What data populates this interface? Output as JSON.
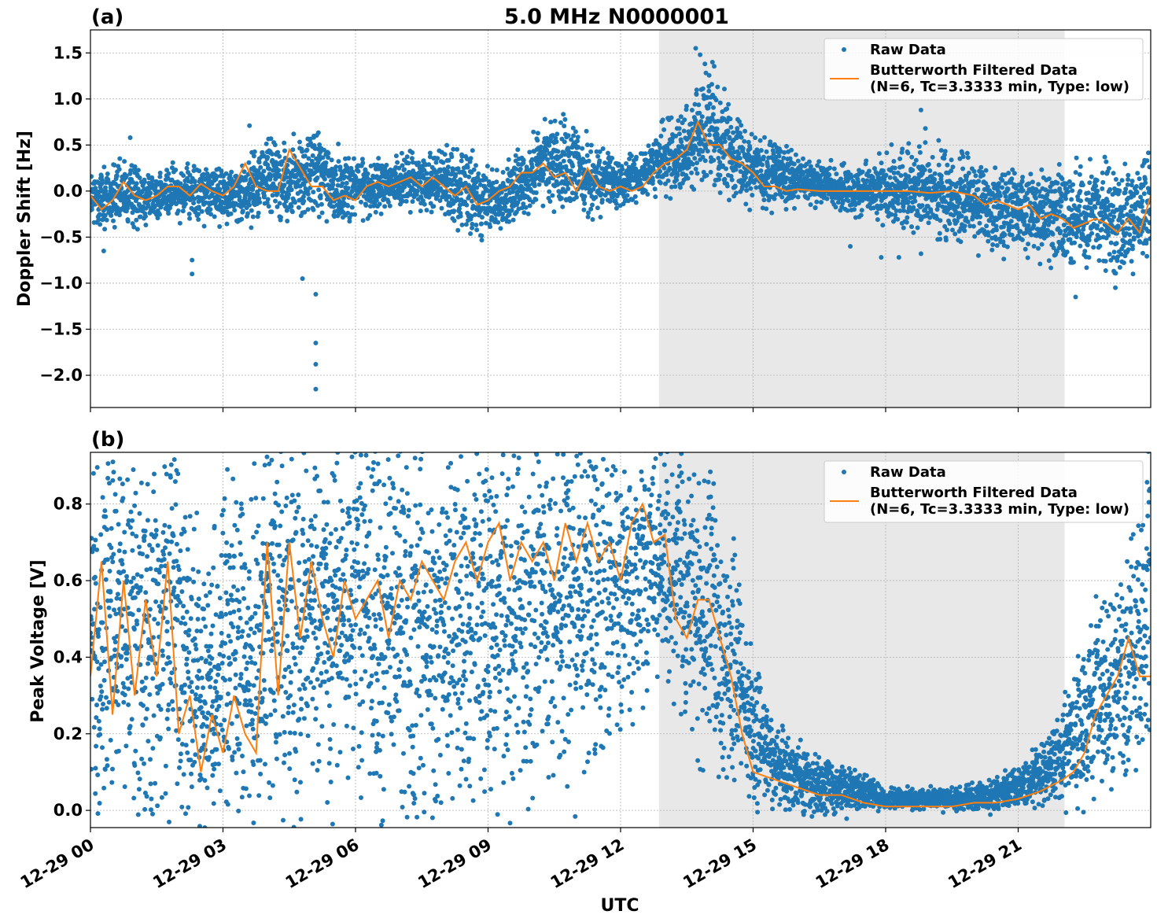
{
  "figure": {
    "title": "5.0 MHz N0000001",
    "xlabel": "UTC",
    "x_ticks": [
      "12-29 00",
      "12-29 03",
      "12-29 06",
      "12-29 09",
      "12-29 12",
      "12-29 15",
      "12-29 18",
      "12-29 21"
    ],
    "x_range_hours": [
      0,
      24
    ],
    "shaded_range_hours": [
      12.87,
      22.05
    ]
  },
  "colors": {
    "raw": "#1f77b4",
    "filtered": "#ff7f0e",
    "shade": "#e8e8e8",
    "grid": "#b0b0b0"
  },
  "legend": {
    "raw_label": "Raw Data",
    "filtered_label_line1": "Butterworth Filtered Data",
    "filtered_label_line2": "(N=6, Tc=3.3333 min, Type: low)"
  },
  "chart_data": [
    {
      "type": "scatter",
      "panel_label": "(a)",
      "ylabel": "Doppler Shift [Hz]",
      "ylim": [
        -2.35,
        1.75
      ],
      "y_ticks": [
        "−2.0",
        "−1.5",
        "−1.0",
        "−0.5",
        "0.0",
        "0.5",
        "1.0",
        "1.5"
      ],
      "y_tick_values": [
        -2.0,
        -1.5,
        -1.0,
        -0.5,
        0.0,
        0.5,
        1.0,
        1.5
      ],
      "grid": true,
      "legend_position": "top-right",
      "series": [
        {
          "name": "Raw Data",
          "kind": "band",
          "x": [
            0,
            0.5,
            1,
            1.5,
            2,
            2.5,
            3,
            3.5,
            4,
            4.5,
            5,
            5.5,
            6,
            6.5,
            7,
            7.5,
            8,
            8.5,
            9,
            9.5,
            10,
            10.5,
            11,
            11.5,
            12,
            12.5,
            13,
            13.5,
            14,
            14.5,
            15,
            15.5,
            16,
            16.5,
            17,
            17.5,
            18,
            18.5,
            19,
            19.5,
            20,
            20.5,
            21,
            21.5,
            22,
            22.5,
            23,
            23.5,
            24
          ],
          "upper": [
            0.15,
            0.2,
            0.2,
            0.15,
            0.2,
            0.2,
            0.2,
            0.2,
            0.55,
            0.3,
            0.6,
            0.35,
            0.3,
            0.25,
            0.3,
            0.3,
            0.4,
            0.3,
            0.1,
            0.2,
            0.5,
            0.7,
            0.6,
            0.35,
            0.3,
            0.35,
            0.65,
            0.8,
            1.2,
            0.8,
            0.55,
            0.45,
            0.3,
            0.25,
            0.2,
            0.25,
            0.3,
            0.35,
            0.3,
            0.3,
            0.2,
            0.2,
            0.1,
            0.1,
            0.1,
            0.15,
            0.1,
            0.1,
            0.2
          ],
          "lower": [
            -0.35,
            -0.3,
            -0.3,
            -0.25,
            -0.2,
            -0.25,
            -0.25,
            -0.25,
            -0.15,
            -0.25,
            -0.1,
            -0.3,
            -0.2,
            -0.15,
            -0.1,
            -0.1,
            -0.15,
            -0.35,
            -0.4,
            -0.3,
            -0.1,
            -0.05,
            -0.1,
            -0.15,
            -0.1,
            0.0,
            0.1,
            0.15,
            0.2,
            0.1,
            -0.05,
            -0.1,
            -0.1,
            -0.1,
            -0.15,
            -0.2,
            -0.25,
            -0.3,
            -0.35,
            -0.4,
            -0.45,
            -0.5,
            -0.55,
            -0.6,
            -0.65,
            -0.7,
            -0.75,
            -0.7,
            -0.6
          ],
          "outliers": [
            [
              0.3,
              -0.65
            ],
            [
              2.3,
              -0.9
            ],
            [
              2.3,
              -0.75
            ],
            [
              4.8,
              -0.95
            ],
            [
              5.1,
              -1.12
            ],
            [
              5.1,
              -1.65
            ],
            [
              5.1,
              -1.88
            ],
            [
              5.1,
              -2.15
            ],
            [
              4.6,
              0.62
            ],
            [
              3.6,
              0.71
            ],
            [
              0.9,
              0.58
            ],
            [
              13.7,
              1.55
            ],
            [
              13.8,
              1.48
            ],
            [
              17.2,
              -0.6
            ],
            [
              17.9,
              -0.72
            ],
            [
              18.3,
              -0.72
            ],
            [
              18.8,
              0.88
            ],
            [
              18.8,
              -0.68
            ],
            [
              18.9,
              0.68
            ],
            [
              19.7,
              -0.55
            ],
            [
              22.3,
              -1.15
            ],
            [
              23.2,
              -1.05
            ],
            [
              23.6,
              -0.9
            ],
            [
              19.2,
              0.55
            ],
            [
              20.1,
              -0.7
            ]
          ]
        },
        {
          "name": "Butterworth Filtered Data",
          "kind": "line",
          "x": [
            0,
            0.25,
            0.5,
            0.75,
            1,
            1.25,
            1.5,
            1.75,
            2,
            2.25,
            2.5,
            2.75,
            3,
            3.25,
            3.5,
            3.75,
            4,
            4.25,
            4.5,
            4.75,
            5,
            5.25,
            5.5,
            5.75,
            6,
            6.25,
            6.5,
            6.75,
            7,
            7.25,
            7.5,
            7.75,
            8,
            8.25,
            8.5,
            8.75,
            9,
            9.25,
            9.5,
            9.75,
            10,
            10.25,
            10.5,
            10.75,
            11,
            11.25,
            11.5,
            11.75,
            12,
            12.25,
            12.5,
            12.75,
            13,
            13.25,
            13.5,
            13.75,
            14,
            14.25,
            14.5,
            14.75,
            15,
            15.25,
            15.5,
            15.75,
            16,
            16.5,
            17,
            17.5,
            18,
            18.5,
            19,
            19.5,
            20,
            20.25,
            20.5,
            20.75,
            21,
            21.25,
            21.5,
            21.75,
            22,
            22.25,
            22.5,
            22.75,
            23,
            23.25,
            23.5,
            23.75,
            24
          ],
          "y": [
            -0.05,
            -0.2,
            -0.1,
            0.1,
            -0.05,
            -0.1,
            -0.05,
            0.05,
            0.05,
            -0.05,
            0.08,
            0.0,
            -0.05,
            0.05,
            0.3,
            0.05,
            0.0,
            0.0,
            0.45,
            0.25,
            0.05,
            0.05,
            -0.1,
            -0.05,
            -0.1,
            0.05,
            0.1,
            0.05,
            0.1,
            0.15,
            0.05,
            0.15,
            0.05,
            -0.05,
            0.05,
            -0.15,
            -0.1,
            0.0,
            0.05,
            0.2,
            0.2,
            0.3,
            0.15,
            0.2,
            0.0,
            0.25,
            0.05,
            0.0,
            0.05,
            0.0,
            0.05,
            0.2,
            0.3,
            0.35,
            0.45,
            0.75,
            0.5,
            0.5,
            0.35,
            0.3,
            0.2,
            0.05,
            0.05,
            0.0,
            0.02,
            0.0,
            0.0,
            0.0,
            0.0,
            0.0,
            -0.02,
            0.0,
            -0.05,
            -0.15,
            -0.1,
            -0.15,
            -0.2,
            -0.15,
            -0.3,
            -0.25,
            -0.3,
            -0.4,
            -0.35,
            -0.3,
            -0.35,
            -0.45,
            -0.3,
            -0.45,
            -0.05
          ]
        }
      ]
    },
    {
      "type": "scatter",
      "panel_label": "(b)",
      "ylabel": "Peak Voltage [V]",
      "ylim": [
        -0.045,
        0.935
      ],
      "y_ticks": [
        "0.0",
        "0.2",
        "0.4",
        "0.6",
        "0.8"
      ],
      "y_tick_values": [
        0.0,
        0.2,
        0.4,
        0.6,
        0.8
      ],
      "grid": true,
      "legend_position": "top-right",
      "series": [
        {
          "name": "Raw Data",
          "kind": "band",
          "x": [
            0,
            0.5,
            1,
            1.5,
            2,
            2.5,
            3,
            3.5,
            4,
            4.5,
            5,
            5.5,
            6,
            6.5,
            7,
            7.5,
            8,
            8.5,
            9,
            9.5,
            10,
            10.5,
            11,
            11.5,
            12,
            12.5,
            13,
            13.5,
            14,
            14.5,
            15,
            15.5,
            16,
            16.5,
            17,
            17.5,
            18,
            18.5,
            19,
            19.5,
            20,
            20.5,
            21,
            21.5,
            22,
            22.5,
            23,
            23.5,
            24
          ],
          "upper": [
            0.8,
            0.87,
            0.86,
            0.86,
            0.82,
            0.6,
            0.7,
            0.72,
            0.86,
            0.88,
            0.88,
            0.86,
            0.86,
            0.87,
            0.88,
            0.88,
            0.88,
            0.88,
            0.88,
            0.89,
            0.89,
            0.89,
            0.89,
            0.89,
            0.89,
            0.89,
            0.88,
            0.87,
            0.83,
            0.62,
            0.35,
            0.2,
            0.15,
            0.12,
            0.1,
            0.08,
            0.05,
            0.05,
            0.05,
            0.05,
            0.06,
            0.07,
            0.1,
            0.15,
            0.25,
            0.4,
            0.5,
            0.65,
            0.85
          ],
          "lower": [
            0.1,
            0.12,
            0.1,
            0.08,
            0.05,
            0.03,
            0.03,
            0.05,
            0.1,
            0.15,
            0.15,
            0.2,
            0.15,
            0.15,
            0.1,
            0.12,
            0.15,
            0.15,
            0.1,
            0.15,
            0.2,
            0.2,
            0.2,
            0.25,
            0.3,
            0.35,
            0.4,
            0.3,
            0.2,
            0.12,
            0.05,
            0.03,
            0.02,
            0.01,
            0.01,
            0.01,
            0.01,
            0.01,
            0.01,
            0.01,
            0.01,
            0.01,
            0.02,
            0.03,
            0.05,
            0.08,
            0.12,
            0.15,
            0.2
          ],
          "outliers": [
            [
              2.8,
              0.2
            ],
            [
              2.8,
              0.2
            ]
          ]
        },
        {
          "name": "Butterworth Filtered Data",
          "kind": "line",
          "x": [
            0,
            0.25,
            0.5,
            0.75,
            1,
            1.25,
            1.5,
            1.75,
            2,
            2.25,
            2.5,
            2.75,
            3,
            3.25,
            3.5,
            3.75,
            4,
            4.25,
            4.5,
            4.75,
            5,
            5.25,
            5.5,
            5.75,
            6,
            6.25,
            6.5,
            6.75,
            7,
            7.25,
            7.5,
            7.75,
            8,
            8.25,
            8.5,
            8.75,
            9,
            9.25,
            9.5,
            9.75,
            10,
            10.25,
            10.5,
            10.75,
            11,
            11.25,
            11.5,
            11.75,
            12,
            12.25,
            12.5,
            12.75,
            13,
            13.25,
            13.5,
            13.75,
            14,
            14.25,
            14.5,
            14.75,
            15,
            15.5,
            16,
            16.5,
            17,
            17.5,
            18,
            18.5,
            19,
            19.5,
            20,
            20.5,
            21,
            21.5,
            22,
            22.25,
            22.5,
            22.75,
            23,
            23.25,
            23.5,
            23.75,
            24
          ],
          "y": [
            0.35,
            0.65,
            0.25,
            0.6,
            0.3,
            0.55,
            0.35,
            0.65,
            0.2,
            0.3,
            0.1,
            0.25,
            0.15,
            0.3,
            0.2,
            0.15,
            0.7,
            0.3,
            0.7,
            0.45,
            0.65,
            0.5,
            0.4,
            0.6,
            0.5,
            0.55,
            0.6,
            0.45,
            0.6,
            0.55,
            0.65,
            0.6,
            0.55,
            0.65,
            0.7,
            0.6,
            0.7,
            0.75,
            0.6,
            0.7,
            0.65,
            0.7,
            0.6,
            0.75,
            0.65,
            0.75,
            0.65,
            0.7,
            0.6,
            0.75,
            0.8,
            0.7,
            0.72,
            0.5,
            0.45,
            0.55,
            0.55,
            0.45,
            0.35,
            0.2,
            0.1,
            0.08,
            0.06,
            0.04,
            0.04,
            0.02,
            0.01,
            0.01,
            0.01,
            0.01,
            0.02,
            0.02,
            0.03,
            0.05,
            0.08,
            0.1,
            0.15,
            0.25,
            0.3,
            0.35,
            0.45,
            0.35,
            0.35
          ]
        }
      ]
    }
  ]
}
